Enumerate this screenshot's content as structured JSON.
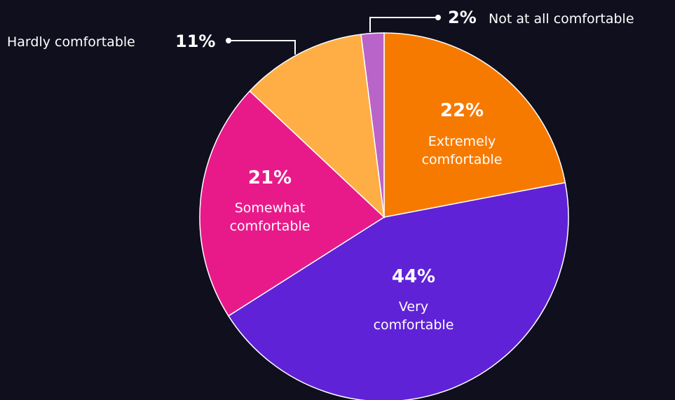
{
  "chart_data": {
    "type": "pie",
    "slices": [
      {
        "label": "Extremely comfortable",
        "label_lines": [
          "Extremely",
          "comfortable"
        ],
        "percent_label": "22%",
        "value": 22,
        "color": "#f77a00"
      },
      {
        "label": "Very comfortable",
        "label_lines": [
          "Very",
          "comfortable"
        ],
        "percent_label": "44%",
        "value": 44,
        "color": "#6022d6"
      },
      {
        "label": "Somewhat comfortable",
        "label_lines": [
          "Somewhat",
          "comfortable"
        ],
        "percent_label": "21%",
        "value": 21,
        "color": "#e81a8a"
      },
      {
        "label": "Hardly comfortable",
        "label_lines": [
          "Hardly comfortable"
        ],
        "percent_label": "11%",
        "value": 11,
        "color": "#ffae45"
      },
      {
        "label": "Not at all comfortable",
        "label_lines": [
          "Not at all comfortable"
        ],
        "percent_label": "2%",
        "value": 2,
        "color": "#b964c8"
      }
    ],
    "start_angle": "12 o'clock",
    "direction": "clockwise",
    "legend": "none"
  },
  "colors": {
    "background": "#0f0f1e",
    "text": "#ffffff",
    "slice_border": "#ffffff"
  }
}
